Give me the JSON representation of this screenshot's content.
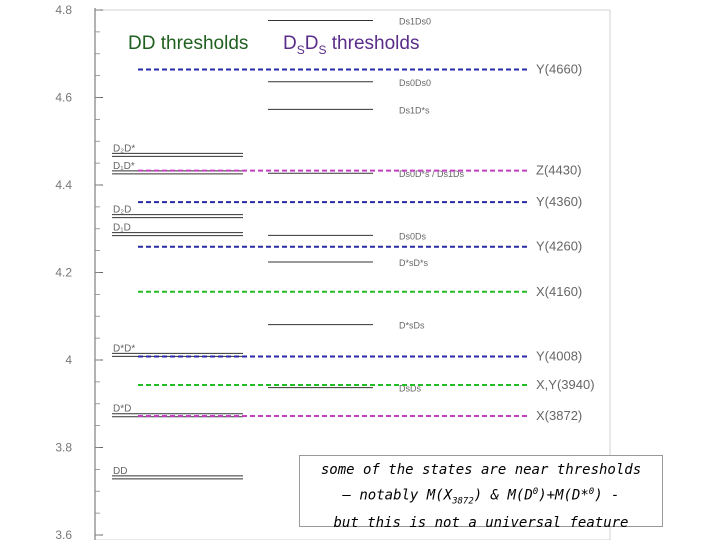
{
  "chart_data": {
    "type": "levels",
    "yaxis": {
      "ylim": [
        3.6,
        4.8
      ],
      "ticks": [
        3.6,
        3.8,
        4,
        4.2,
        4.4,
        4.6,
        4.8
      ],
      "tick_labels": [
        "3.6",
        "3.8",
        "4",
        "4.2",
        "4.4",
        "4.6",
        "4.8"
      ]
    },
    "headings": {
      "dd": "DD thresholds",
      "ds_main1": "D",
      "ds_sub1": "S",
      "ds_main2": "D",
      "ds_sub2": "S",
      "ds_tail": " thresholds"
    },
    "dd_thresholds": [
      {
        "label": "DD",
        "mass": 3.733
      },
      {
        "label": "D*D",
        "mass": 3.875
      },
      {
        "label": "D*D*",
        "mass": 4.013
      },
      {
        "label": "D₁D",
        "mass": 4.289
      },
      {
        "label": "D₂D",
        "mass": 4.33
      },
      {
        "label": "D₁D*",
        "mass": 4.43
      },
      {
        "label": "D₂D*",
        "mass": 4.47
      }
    ],
    "ds_thresholds": [
      {
        "label": "DsDs",
        "mass": 3.937
      },
      {
        "label": "D*sDs",
        "mass": 4.081
      },
      {
        "label": "D*sD*s",
        "mass": 4.224
      },
      {
        "label": "Ds0Ds",
        "mass": 4.285
      },
      {
        "label": "Ds0D*s / Ds1Ds",
        "mass": 4.427
      },
      {
        "label": "Ds1D*s",
        "mass": 4.573
      },
      {
        "label": "Ds0Ds0",
        "mass": 4.636
      },
      {
        "label": "Ds1Ds0",
        "mass": 4.776
      }
    ],
    "states": [
      {
        "label": "Y(4660)",
        "mass": 4.664,
        "color": "#2a2aa8"
      },
      {
        "label": "Z(4430)",
        "mass": 4.433,
        "color": "#c040c0"
      },
      {
        "label": "Y(4360)",
        "mass": 4.361,
        "color": "#2a2aa8"
      },
      {
        "label": "Y(4260)",
        "mass": 4.259,
        "color": "#2a2aa8"
      },
      {
        "label": "X(4160)",
        "mass": 4.156,
        "color": "#22bb22"
      },
      {
        "label": "Y(4008)",
        "mass": 4.008,
        "color": "#2a2aa8"
      },
      {
        "label": "X,Y(3940)",
        "mass": 3.943,
        "color": "#22bb22"
      },
      {
        "label": "X(3872)",
        "mass": 3.872,
        "color": "#c040c0"
      }
    ]
  },
  "note": {
    "line1": "some of the states are near thresholds",
    "l2_a": "– notably M(X",
    "l2_sub": "3872",
    "l2_b": ") & M(D",
    "l2_sup1": "0",
    "l2_c": ")+M(D*",
    "l2_sup2": "0",
    "l2_d": ") -",
    "line3": "but this is not a universal feature"
  }
}
